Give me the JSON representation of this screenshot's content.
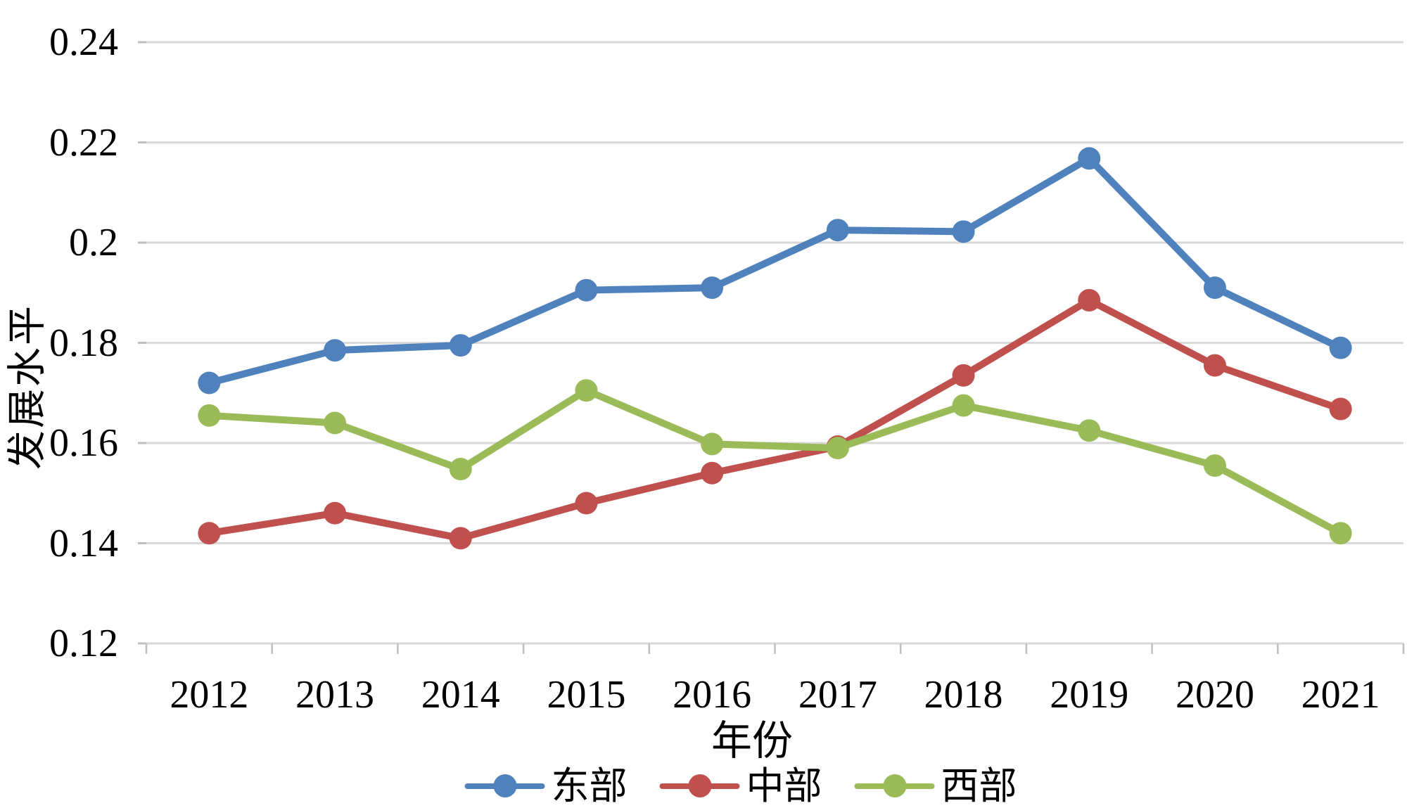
{
  "chart_data": {
    "type": "line",
    "title": "",
    "xlabel": "年份",
    "ylabel": "发展水平",
    "categories": [
      "2012",
      "2013",
      "2014",
      "2015",
      "2016",
      "2017",
      "2018",
      "2019",
      "2020",
      "2021"
    ],
    "series": [
      {
        "name": "东部",
        "color": "#4F81BD",
        "values": [
          0.172,
          0.1785,
          0.1795,
          0.1905,
          0.191,
          0.2025,
          0.2022,
          0.2168,
          0.191,
          0.179
        ]
      },
      {
        "name": "中部",
        "color": "#C0504D",
        "values": [
          0.142,
          0.146,
          0.141,
          0.148,
          0.154,
          0.1593,
          0.1735,
          0.1885,
          0.1755,
          0.1668
        ]
      },
      {
        "name": "西部",
        "color": "#9BBB59",
        "values": [
          0.1655,
          0.164,
          0.1548,
          0.1705,
          0.1598,
          0.159,
          0.1675,
          0.1625,
          0.1555,
          0.142
        ]
      }
    ],
    "ylim": [
      0.12,
      0.24
    ],
    "yticks": [
      0.24,
      0.22,
      0.2,
      0.18,
      0.16,
      0.14,
      0.12
    ],
    "ytick_labels": [
      "0.24",
      "0.22",
      "0.2",
      "0.18",
      "0.16",
      "0.14",
      "0.12"
    ],
    "grid": "horizontal-only",
    "legend_position": "bottom",
    "gridline_color": "#D9D9D9",
    "axis_tick_color": "#BFBFBF",
    "text_color": "#000000",
    "background_color": "#FFFFFF"
  }
}
